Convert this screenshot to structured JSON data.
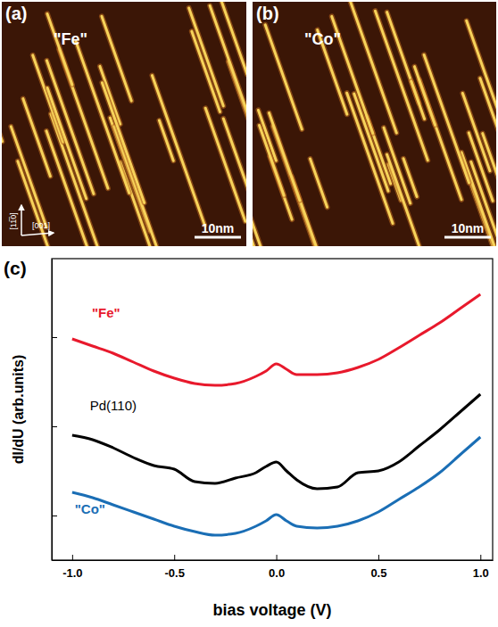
{
  "images": [
    {
      "letter": "(a)",
      "label": "\"Fe\"",
      "scale_bar": "10nm",
      "directions": [
        "[11̅0]",
        "[001]"
      ]
    },
    {
      "letter": "(b)",
      "label": "\"Co\"",
      "scale_bar": "10nm"
    }
  ],
  "chart_data": {
    "type": "line",
    "panel_label": "(c)",
    "x_label": "bias voltage (V)",
    "y_label": "dI/dU (arb.units)",
    "xlim": [
      -1.1,
      1.06
    ],
    "xticks": [
      {
        "value": -1,
        "label": "-1.0"
      },
      {
        "value": -0.5,
        "label": "-0.5"
      },
      {
        "value": 0,
        "label": "0.0"
      },
      {
        "value": 0.5,
        "label": "0.5"
      },
      {
        "value": 1,
        "label": "1.0"
      }
    ],
    "ylim": [
      0,
      3.38
    ],
    "yticks": [
      0.5,
      1.5,
      2.5
    ],
    "tick_labels": "x",
    "x": [
      -1.0,
      -0.9,
      -0.8,
      -0.7,
      -0.6,
      -0.5,
      -0.4,
      -0.3,
      -0.2,
      -0.1,
      -0.05,
      0.0,
      0.05,
      0.1,
      0.2,
      0.3,
      0.4,
      0.5,
      0.6,
      0.7,
      0.8,
      0.9,
      1.0
    ],
    "series": [
      {
        "name": "\"Fe\"",
        "color": "#e8192c",
        "values": [
          2.48,
          2.4,
          2.32,
          2.22,
          2.12,
          2.04,
          1.98,
          1.96,
          1.98,
          2.06,
          2.12,
          2.2,
          2.14,
          2.08,
          2.08,
          2.1,
          2.16,
          2.25,
          2.38,
          2.52,
          2.66,
          2.82,
          2.98
        ]
      },
      {
        "name": "Pd(110)",
        "color": "#000000",
        "values": [
          1.4,
          1.35,
          1.26,
          1.15,
          1.06,
          1.02,
          0.88,
          0.86,
          0.92,
          0.98,
          1.05,
          1.1,
          1.0,
          0.9,
          0.8,
          0.82,
          0.98,
          1.0,
          1.1,
          1.28,
          1.46,
          1.66,
          1.86
        ]
      },
      {
        "name": "\"Co\"",
        "color": "#1a6eb5",
        "values": [
          0.76,
          0.7,
          0.62,
          0.54,
          0.46,
          0.38,
          0.32,
          0.28,
          0.3,
          0.38,
          0.44,
          0.51,
          0.44,
          0.38,
          0.36,
          0.38,
          0.44,
          0.54,
          0.68,
          0.82,
          0.98,
          1.18,
          1.38
        ]
      }
    ]
  }
}
